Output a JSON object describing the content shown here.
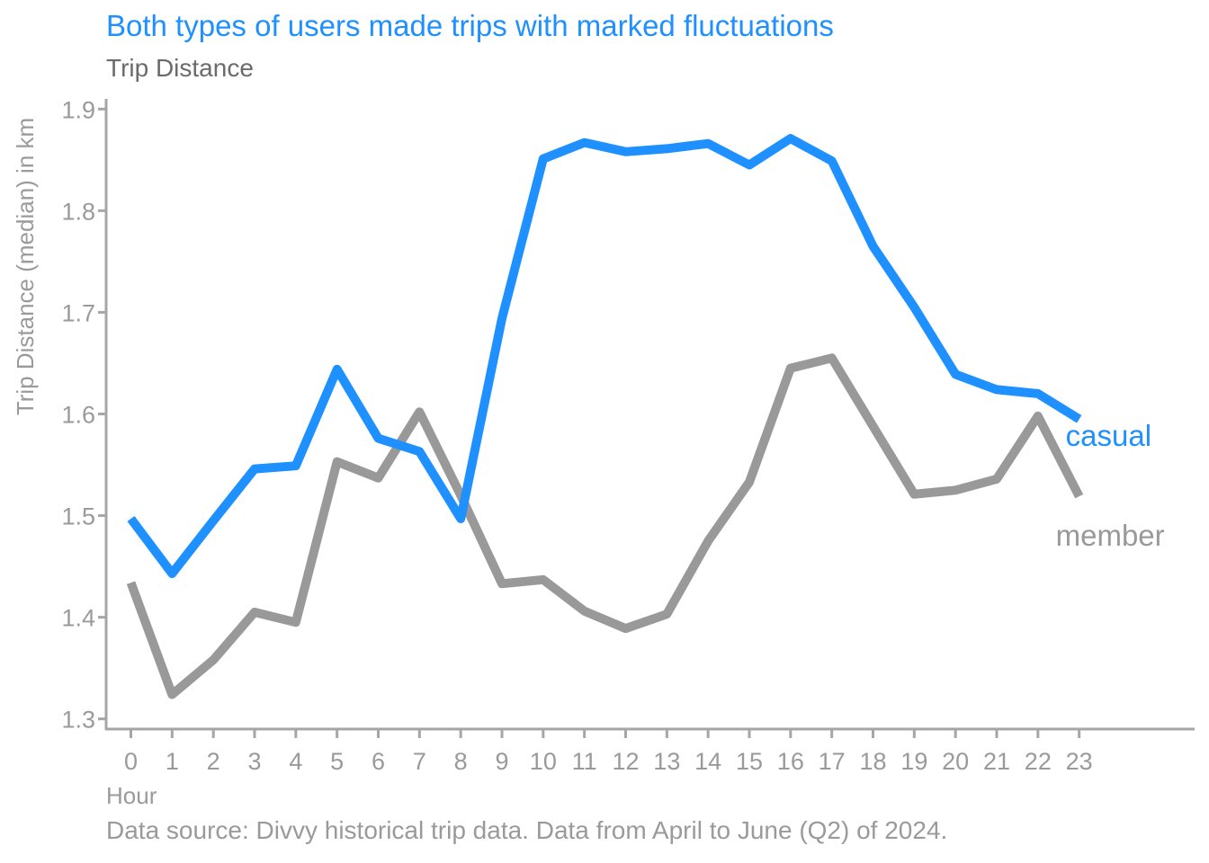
{
  "chart_data": {
    "type": "line",
    "title": "Both types of users made trips with marked fluctuations",
    "subtitle": "Trip Distance",
    "xlabel": "Hour",
    "ylabel": "Trip Distance (median) in km",
    "caption": "Data source: Divvy historical trip data. Data from April to June (Q2) of 2024.",
    "x": [
      0,
      1,
      2,
      3,
      4,
      5,
      6,
      7,
      8,
      9,
      10,
      11,
      12,
      13,
      14,
      15,
      16,
      17,
      18,
      19,
      20,
      21,
      22,
      23
    ],
    "xlim": [
      -0.6,
      25.8
    ],
    "ylim": [
      1.29,
      1.91
    ],
    "yticks": [
      1.3,
      1.4,
      1.5,
      1.6,
      1.7,
      1.8,
      1.9
    ],
    "ytick_labels": [
      "1.3",
      "1.4",
      "1.5",
      "1.6",
      "1.7",
      "1.8",
      "1.9"
    ],
    "xtick_labels": [
      "0",
      "1",
      "2",
      "3",
      "4",
      "5",
      "6",
      "7",
      "8",
      "9",
      "10",
      "11",
      "12",
      "13",
      "14",
      "15",
      "16",
      "17",
      "18",
      "19",
      "20",
      "21",
      "22",
      "23"
    ],
    "legend": "direct-labels-right",
    "grid": false,
    "series": [
      {
        "name": "casual",
        "color": "#1e90ff",
        "values": [
          1.497,
          1.443,
          1.495,
          1.546,
          1.549,
          1.644,
          1.576,
          1.563,
          1.497,
          1.694,
          1.851,
          1.867,
          1.858,
          1.861,
          1.866,
          1.845,
          1.871,
          1.849,
          1.765,
          1.705,
          1.639,
          1.624,
          1.62,
          1.595
        ]
      },
      {
        "name": "member",
        "color": "#999999",
        "values": [
          1.434,
          1.324,
          1.358,
          1.405,
          1.395,
          1.553,
          1.537,
          1.602,
          1.52,
          1.433,
          1.437,
          1.406,
          1.389,
          1.403,
          1.475,
          1.533,
          1.645,
          1.655,
          1.588,
          1.521,
          1.525,
          1.536,
          1.598,
          1.519
        ]
      }
    ]
  }
}
